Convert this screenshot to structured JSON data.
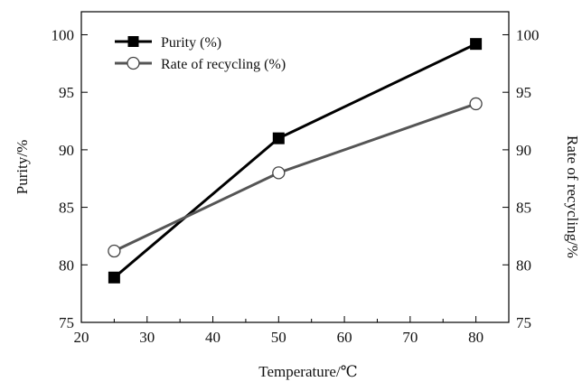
{
  "chart_data": {
    "type": "line",
    "xlabel": "Temperature/℃",
    "ylabel_left": "Purity/%",
    "ylabel_right": "Rate of recycling/%",
    "xlim": [
      20,
      85
    ],
    "xticks": [
      20,
      30,
      40,
      50,
      60,
      70,
      80
    ],
    "ylim_left": [
      75,
      102
    ],
    "ylim_right": [
      75,
      102
    ],
    "yticks_left": [
      75,
      80,
      85,
      90,
      95,
      100
    ],
    "yticks_right": [
      75,
      80,
      85,
      90,
      95,
      100
    ],
    "legend_position": "top-left",
    "series": [
      {
        "name": "Purity (%)",
        "axis": "left",
        "marker": "filled-square",
        "color": "#000000",
        "x": [
          25,
          50,
          80
        ],
        "y": [
          78.9,
          91,
          99.2
        ]
      },
      {
        "name": "Rate of recycling (%)",
        "axis": "right",
        "marker": "open-circle",
        "color": "#555555",
        "x": [
          25,
          50,
          80
        ],
        "y": [
          81.2,
          88,
          94
        ]
      }
    ]
  }
}
